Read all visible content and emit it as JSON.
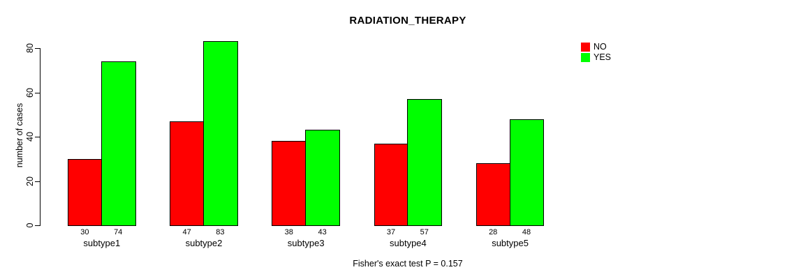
{
  "title": "RADIATION_THERAPY",
  "footer": "Fisher's exact test P = 0.157",
  "chart_data": {
    "type": "bar",
    "title": "RADIATION_THERAPY",
    "xlabel": "",
    "ylabel": "number of cases",
    "categories": [
      "subtype1",
      "subtype2",
      "subtype3",
      "subtype4",
      "subtype5"
    ],
    "series": [
      {
        "name": "NO",
        "color": "#ff0000",
        "values": [
          30,
          47,
          38,
          37,
          28
        ]
      },
      {
        "name": "YES",
        "color": "#00ff00",
        "values": [
          74,
          83,
          43,
          57,
          48
        ]
      }
    ],
    "ylim": [
      0,
      80
    ],
    "yticks": [
      0,
      20,
      40,
      60,
      80
    ],
    "grid": false,
    "legend_position": "top-right",
    "bar_value_labels": true,
    "annotation": "Fisher's exact test P = 0.157"
  }
}
